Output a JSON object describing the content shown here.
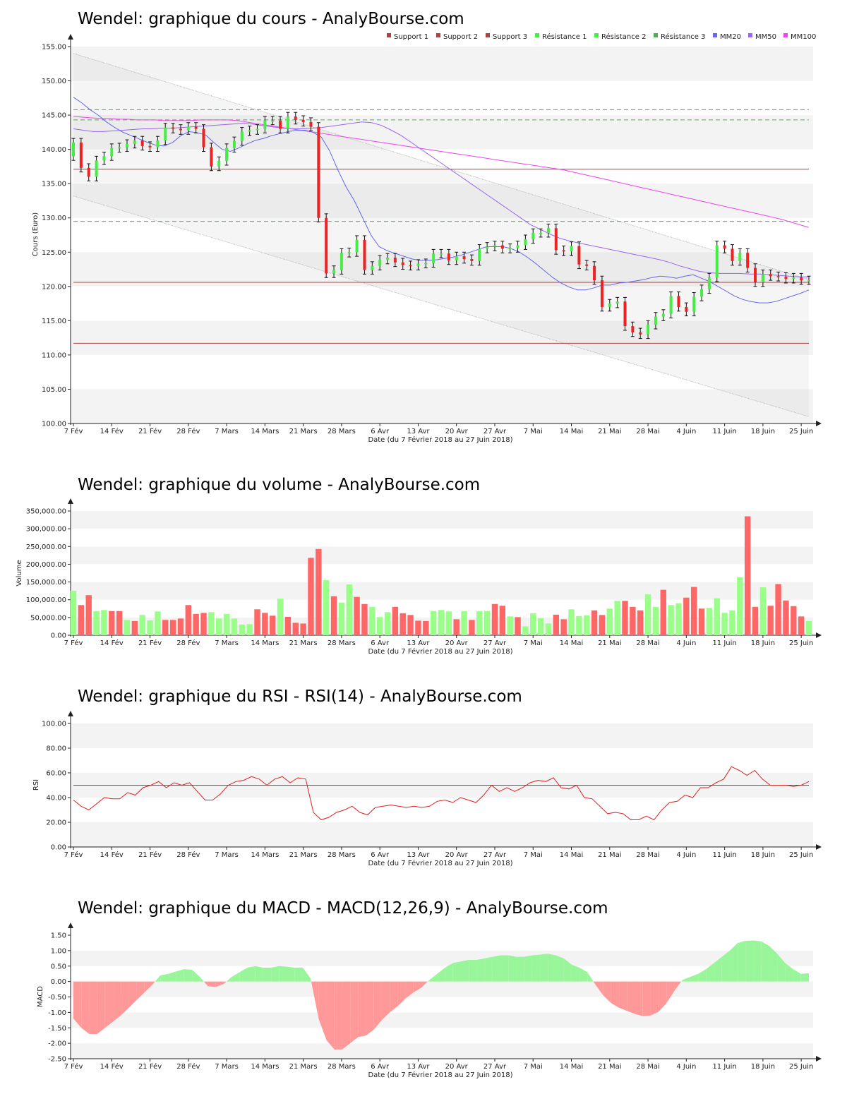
{
  "colors": {
    "up": "#44ee44",
    "down": "#ee2222",
    "vol_up": "#99ff88",
    "vol_down": "#ff6666",
    "macd_pos": "#99f599",
    "macd_neg": "#ff9999",
    "support": "#aa4444",
    "resistance": "#55aa55",
    "mm20": "#6666ee",
    "mm50": "#9966ee",
    "mm100": "#ee44ee",
    "rsi": "#dd2222"
  },
  "x_axis": {
    "labels": [
      "7 Fév",
      "14 Fév",
      "21 Fév",
      "28 Fév",
      "7 Mars",
      "14 Mars",
      "21 Mars",
      "28 Mars",
      "6 Avr",
      "13 Avr",
      "20 Avr",
      "27 Avr",
      "7 Mai",
      "14 Mai",
      "21 Mai",
      "28 Mai",
      "4 Juin",
      "11 Juin",
      "18 Juin",
      "25 Juin"
    ],
    "label_days": [
      0,
      5,
      10,
      15,
      20,
      25,
      30,
      35,
      40,
      45,
      50,
      55,
      60,
      65,
      70,
      75,
      80,
      85,
      90,
      95
    ],
    "caption": "Date (du 7 Février 2018 au 27 Juin 2018)",
    "n_days": 97
  },
  "chart_data": [
    {
      "type": "candlestick",
      "title": "Wendel: graphique du cours - AnalyBourse.com",
      "ylabel": "Cours (Euro)",
      "ylim": [
        100,
        155
      ],
      "y_ticks": [
        "100.00",
        "105.00",
        "110.00",
        "115.00",
        "120.00",
        "125.00",
        "130.00",
        "135.00",
        "140.00",
        "145.00",
        "150.00",
        "155.00"
      ],
      "legend": [
        "Support 1",
        "Support 2",
        "Support 3",
        "Résistance 1",
        "Résistance 2",
        "Résistance 3",
        "MM20",
        "MM50",
        "MM100"
      ],
      "supports": [
        137.1,
        120.6,
        111.7
      ],
      "resistances": [
        129.5,
        144.3,
        145.8
      ],
      "channel_upper": [
        154.0,
        121.0
      ],
      "channel_lower": [
        133.2,
        101.0
      ],
      "close": [
        141.0,
        137.3,
        136.0,
        138.4,
        139.0,
        140.2,
        140.3,
        140.8,
        141.3,
        140.5,
        140.3,
        141.3,
        143.2,
        143.0,
        142.8,
        143.3,
        143.0,
        140.3,
        137.5,
        138.3,
        140.2,
        141.2,
        142.6,
        142.8,
        143.0,
        144.2,
        144.2,
        143.0,
        144.8,
        144.3,
        144.0,
        143.3,
        130.0,
        121.9,
        122.4,
        124.9,
        125.0,
        126.8,
        122.4,
        123.0,
        123.9,
        124.2,
        123.5,
        123.1,
        123.0,
        123.3,
        123.4,
        124.8,
        124.8,
        123.8,
        124.4,
        124.0,
        123.7,
        125.5,
        125.8,
        126.0,
        125.5,
        125.6,
        126.0,
        126.9,
        127.8,
        127.8,
        128.5,
        125.3,
        125.1,
        125.9,
        123.2,
        123.0,
        120.9,
        117.0,
        117.5,
        117.8,
        114.2,
        113.3,
        113.0,
        114.4,
        115.6,
        116.0,
        118.6,
        117.0,
        116.3,
        118.5,
        119.6,
        121.3,
        126.0,
        125.5,
        123.7,
        124.9,
        122.7,
        120.6,
        121.8,
        121.5,
        121.4,
        121.1,
        121.3,
        120.9,
        120.9
      ],
      "ma20": [
        147.6,
        146.8,
        145.8,
        145.0,
        144.0,
        143.2,
        142.5,
        142.0,
        141.5,
        141.0,
        140.6,
        140.5,
        141.0,
        142.0,
        142.6,
        142.4,
        142.1,
        141.0,
        140.0,
        139.7,
        140.2,
        140.8,
        141.3,
        141.6,
        142.0,
        142.3,
        142.6,
        142.8,
        142.8,
        142.5,
        141.8,
        139.8,
        137.0,
        134.5,
        132.5,
        130.0,
        127.5,
        125.8,
        125.2,
        124.8,
        124.4,
        124.0,
        123.8,
        123.8,
        123.9,
        124.1,
        124.3,
        124.6,
        125.0,
        125.4,
        125.8,
        125.8,
        125.8,
        125.5,
        125.0,
        124.2,
        123.3,
        122.3,
        121.3,
        120.5,
        119.9,
        119.5,
        119.5,
        119.8,
        120.2,
        120.2,
        120.5,
        120.6,
        120.8,
        121.0,
        121.3,
        121.5,
        121.4,
        121.2,
        121.5,
        121.7,
        121.2,
        120.7,
        120.0,
        119.3,
        118.6,
        118.1,
        117.8,
        117.6,
        117.6,
        117.8,
        118.2,
        118.6,
        119.0,
        119.5
      ],
      "ma50": [
        143.0,
        142.8,
        142.6,
        142.6,
        142.7,
        142.8,
        142.9,
        143.0,
        143.0,
        143.1,
        143.1,
        143.2,
        143.3,
        143.4,
        143.5,
        143.6,
        143.7,
        143.8,
        143.7,
        143.5,
        143.3,
        143.1,
        143.0,
        143.0,
        143.1,
        143.2,
        143.4,
        143.6,
        143.8,
        144.0,
        143.9,
        143.5,
        142.8,
        142.0,
        141.0,
        140.0,
        139.0,
        138.0,
        137.0,
        136.0,
        135.0,
        134.0,
        133.0,
        132.0,
        131.0,
        130.0,
        129.0,
        128.3,
        127.6,
        127.0,
        126.6,
        126.3,
        126.0,
        125.7,
        125.4,
        125.1,
        124.8,
        124.5,
        124.2,
        123.9,
        123.5,
        123.0,
        122.6,
        122.2,
        122.0,
        121.9,
        121.9,
        121.9,
        121.8,
        121.8,
        121.7,
        121.6,
        121.5,
        121.4,
        121.4
      ],
      "ma100": [
        144.8,
        144.7,
        144.6,
        144.5,
        144.5,
        144.4,
        144.4,
        144.3,
        144.3,
        144.3,
        144.2,
        144.2,
        144.2,
        144.2,
        144.3,
        144.3,
        144.3,
        144.3,
        144.2,
        144.0,
        143.8,
        143.6,
        143.4,
        143.2,
        143.0,
        142.8,
        142.6,
        142.4,
        142.2,
        142.0,
        141.8,
        141.6,
        141.4,
        141.2,
        141.0,
        140.8,
        140.6,
        140.4,
        140.2,
        140.0,
        139.8,
        139.6,
        139.4,
        139.2,
        139.0,
        138.8,
        138.6,
        138.4,
        138.2,
        138.0,
        137.8,
        137.6,
        137.4,
        137.2,
        137.0,
        136.7,
        136.4,
        136.1,
        135.8,
        135.5,
        135.2,
        134.9,
        134.6,
        134.3,
        134.0,
        133.7,
        133.4,
        133.1,
        132.8,
        132.5,
        132.2,
        131.9,
        131.6,
        131.3,
        131.0,
        130.7,
        130.4,
        130.1,
        129.8,
        129.4,
        129.0,
        128.6
      ]
    },
    {
      "type": "bar",
      "title": "Wendel: graphique du volume - AnalyBourse.com",
      "ylabel": "Volume",
      "ylim": [
        0,
        350000
      ],
      "y_ticks": [
        "0.00",
        "50,000.00",
        "100,000.00",
        "150,000.00",
        "200,000.00",
        "250,000.00",
        "300,000.00",
        "350,000.00"
      ],
      "values": [
        125000,
        85000,
        113000,
        68000,
        71000,
        68000,
        68000,
        43000,
        40000,
        57000,
        42000,
        67000,
        43000,
        43000,
        47000,
        85000,
        60000,
        63000,
        65000,
        47000,
        60000,
        47000,
        30000,
        31000,
        73000,
        63000,
        55000,
        103000,
        52000,
        35000,
        33000,
        218000,
        243000,
        155000,
        110000,
        92000,
        143000,
        108000,
        88000,
        80000,
        51000,
        65000,
        80000,
        62000,
        57000,
        41000,
        40000,
        68000,
        71000,
        67000,
        45000,
        68000,
        43000,
        68000,
        68000,
        88000,
        83000,
        53000,
        51000,
        25000,
        62000,
        48000,
        33000,
        58000,
        45000,
        73000,
        54000,
        56000,
        70000,
        57000,
        75000,
        97000,
        97000,
        80000,
        70000,
        115000,
        80000,
        128000,
        85000,
        90000,
        106000,
        136000,
        75000,
        77000,
        104000,
        63000,
        70000,
        163000,
        335000,
        80000,
        135000,
        83000,
        144000,
        98000,
        82000,
        53000,
        40000
      ],
      "up": [
        true,
        false,
        false,
        true,
        true,
        false,
        false,
        true,
        false,
        true,
        true,
        true,
        false,
        false,
        false,
        false,
        false,
        false,
        true,
        true,
        true,
        true,
        true,
        true,
        false,
        false,
        false,
        true,
        false,
        false,
        false,
        false,
        false,
        true,
        false,
        true,
        true,
        false,
        false,
        true,
        true,
        true,
        false,
        false,
        false,
        false,
        false,
        true,
        true,
        true,
        false,
        true,
        false,
        true,
        true,
        false,
        false,
        true,
        false,
        true,
        true,
        true,
        true,
        false,
        false,
        true,
        true,
        true,
        false,
        false,
        true,
        true,
        false,
        false,
        false,
        true,
        true,
        false,
        true,
        true,
        false,
        false,
        false,
        true,
        true,
        true,
        true,
        true,
        false,
        false,
        true,
        false,
        false,
        false,
        false,
        false,
        true
      ]
    },
    {
      "type": "line",
      "title": "Wendel: graphique du RSI - RSI(14) - AnalyBourse.com",
      "ylabel": "RSI",
      "ylim": [
        0,
        100
      ],
      "y_ticks": [
        "0.00",
        "20.00",
        "40.00",
        "60.00",
        "80.00",
        "100.00"
      ],
      "reference": 50,
      "values": [
        38,
        33,
        30,
        35,
        40,
        39,
        39,
        44,
        42,
        48,
        50,
        53,
        48,
        52,
        50,
        52,
        45,
        38,
        38,
        43,
        50,
        53,
        54,
        57,
        55,
        50,
        55,
        57,
        52,
        56,
        55,
        28,
        22,
        24,
        28,
        30,
        33,
        28,
        26,
        32,
        33,
        34,
        33,
        32,
        33,
        32,
        33,
        37,
        38,
        36,
        40,
        38,
        36,
        42,
        50,
        45,
        48,
        45,
        48,
        52,
        54,
        53,
        56,
        48,
        47,
        50,
        40,
        39,
        33,
        27,
        28,
        27,
        22,
        22,
        25,
        22,
        30,
        36,
        37,
        42,
        40,
        48,
        48,
        52,
        55,
        65,
        62,
        58,
        62,
        55,
        50,
        50,
        50,
        49,
        50,
        53
      ]
    },
    {
      "type": "area",
      "title": "Wendel: graphique du MACD - MACD(12,26,9) - AnalyBourse.com",
      "ylabel": "MACD",
      "ylim": [
        -2.5,
        1.5
      ],
      "y_ticks": [
        "-2.50",
        "-2.00",
        "-1.50",
        "-1.00",
        "-0.50",
        "0.00",
        "0.50",
        "1.00",
        "1.50"
      ],
      "values": [
        -1.2,
        -1.5,
        -1.7,
        -1.7,
        -1.5,
        -1.3,
        -1.1,
        -0.85,
        -0.6,
        -0.35,
        -0.1,
        0.2,
        0.25,
        0.33,
        0.4,
        0.38,
        0.15,
        -0.15,
        -0.18,
        -0.08,
        0.15,
        0.3,
        0.45,
        0.5,
        0.45,
        0.45,
        0.5,
        0.48,
        0.45,
        0.45,
        0.1,
        -1.2,
        -1.9,
        -2.2,
        -2.2,
        -2.0,
        -1.8,
        -1.75,
        -1.55,
        -1.25,
        -1.0,
        -0.8,
        -0.55,
        -0.35,
        -0.2,
        0.05,
        0.25,
        0.45,
        0.6,
        0.65,
        0.7,
        0.7,
        0.75,
        0.8,
        0.85,
        0.85,
        0.8,
        0.8,
        0.85,
        0.87,
        0.9,
        0.85,
        0.75,
        0.55,
        0.45,
        0.3,
        -0.1,
        -0.45,
        -0.7,
        -0.85,
        -0.95,
        -1.05,
        -1.12,
        -1.1,
        -0.98,
        -0.7,
        -0.3,
        0.05,
        0.15,
        0.25,
        0.4,
        0.6,
        0.8,
        1.0,
        1.25,
        1.32,
        1.33,
        1.3,
        1.15,
        0.9,
        0.6,
        0.4,
        0.25,
        0.27
      ]
    }
  ]
}
